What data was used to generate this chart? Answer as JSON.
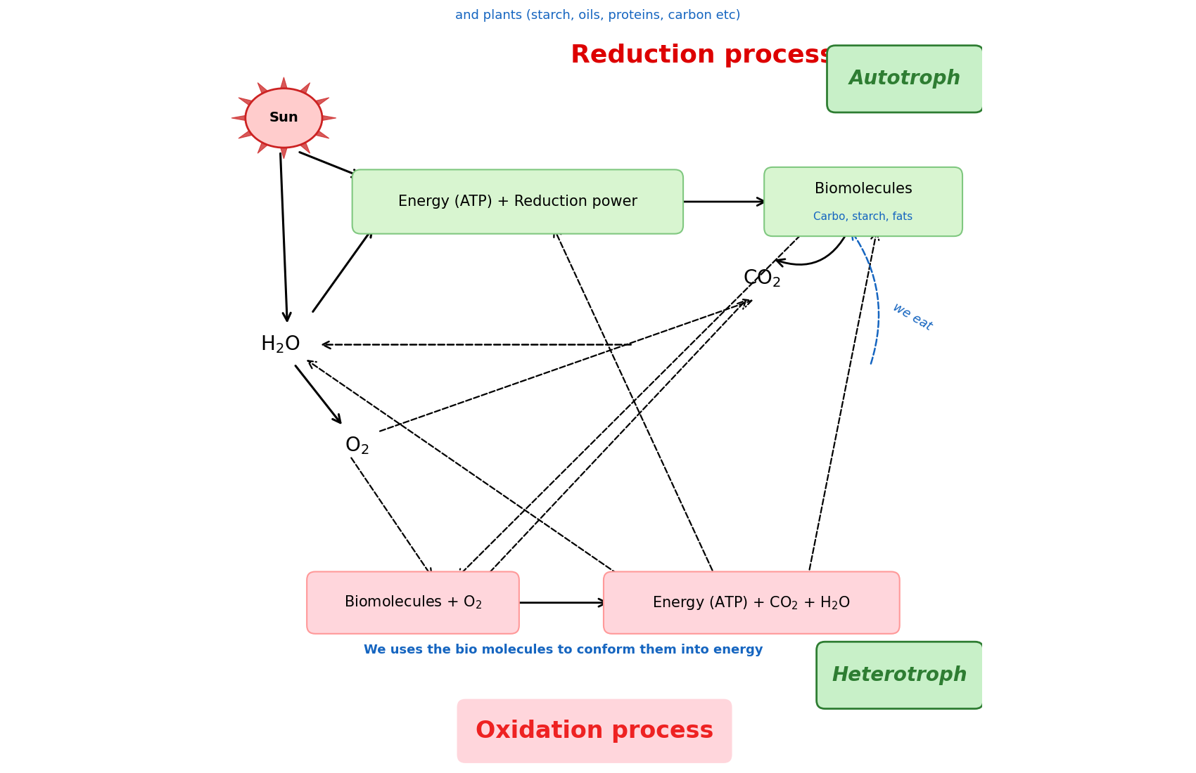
{
  "title_top": "and plants (starch, oils, proteins, carbon etc)",
  "title_top_color": "#1565C0",
  "reduction_title": "Reduction process",
  "reduction_title_color": "#DD0000",
  "oxidation_title": "Oxidation process",
  "oxidation_title_color": "#EE2222",
  "autotroph_label": "Autotroph",
  "autotroph_color": "#2E7D32",
  "autotroph_bg": "#C8F0C8",
  "heterotroph_label": "Heterotroph",
  "heterotroph_color": "#2E7D32",
  "heterotroph_bg": "#C8F0C8",
  "box_atp_label": "Energy (ATP) + Reduction power",
  "box_atp_bg": "#D8F5D0",
  "box_atp_border": "#80C880",
  "box_biomol_label": "Biomolecules",
  "box_biomol_sub": "Carbo, starch, fats",
  "box_biomol_bg": "#D8F5D0",
  "box_biomol_border": "#80C880",
  "box_biomol_sub_color": "#1565C0",
  "box_bottom_left_label": "Biomolecules + O₂",
  "box_bottom_left_bg": "#FFD6DC",
  "box_bottom_left_border": "#FF9999",
  "box_bottom_right_label": "Energy (ATP) + CO₂ + H₂O",
  "box_bottom_right_bg": "#FFD6DC",
  "box_bottom_right_border": "#FF9999",
  "we_eat_label": "we eat",
  "we_eat_color": "#1565C0",
  "bottom_note": "We uses the bio molecules to conform them into energy",
  "bottom_note_color": "#1565C0",
  "sun_label": "Sun",
  "sun_bg": "#FFCCCC",
  "sun_color": "#CC2222",
  "sun_ray_color": "#CC2222",
  "background_color": "#FFFFFF",
  "arrow_color": "#000000",
  "dashed_color": "#000000"
}
